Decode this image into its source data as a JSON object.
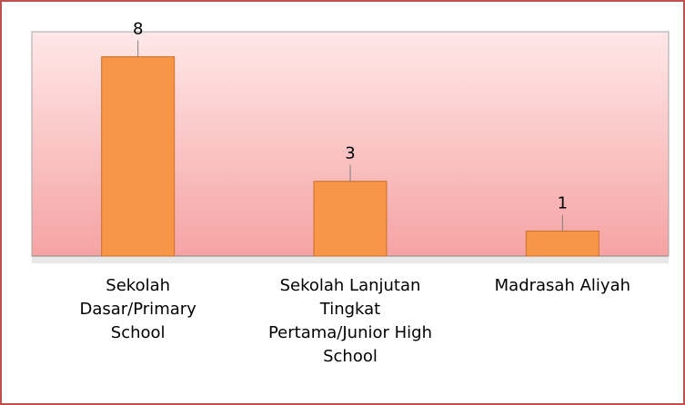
{
  "chart_data": {
    "type": "bar",
    "categories": [
      "Sekolah Dasar/Primary School",
      "Sekolah Lanjutan Tingkat Pertama/Junior High School",
      "Madrasah Aliyah"
    ],
    "values": [
      8,
      3,
      1
    ],
    "color": "#f79646",
    "ylim": [
      0,
      9
    ]
  }
}
